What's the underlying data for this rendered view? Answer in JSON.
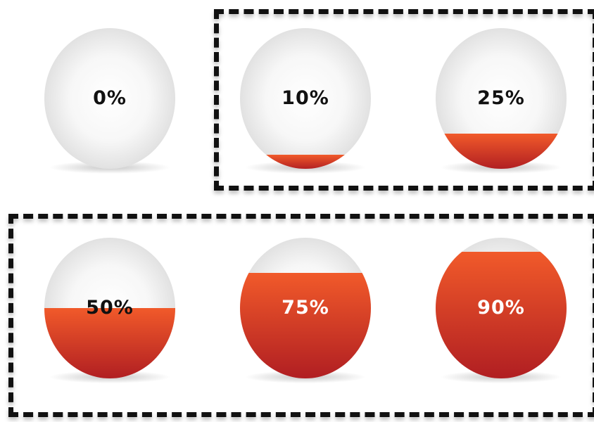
{
  "colors": {
    "fill_top": "#f15a2a",
    "fill_bottom": "#b01e22",
    "sphere_light": "#ffffff",
    "sphere_dark": "#dcdcdc",
    "label_dark": "#111111",
    "label_light": "#ffffff",
    "frame": "#111111"
  },
  "gauges": [
    {
      "label": "0%",
      "level": 0.0
    },
    {
      "label": "10%",
      "level": 0.1
    },
    {
      "label": "25%",
      "level": 0.25
    },
    {
      "label": "50%",
      "level": 0.5
    },
    {
      "label": "75%",
      "level": 0.75
    },
    {
      "label": "90%",
      "level": 0.9
    }
  ]
}
